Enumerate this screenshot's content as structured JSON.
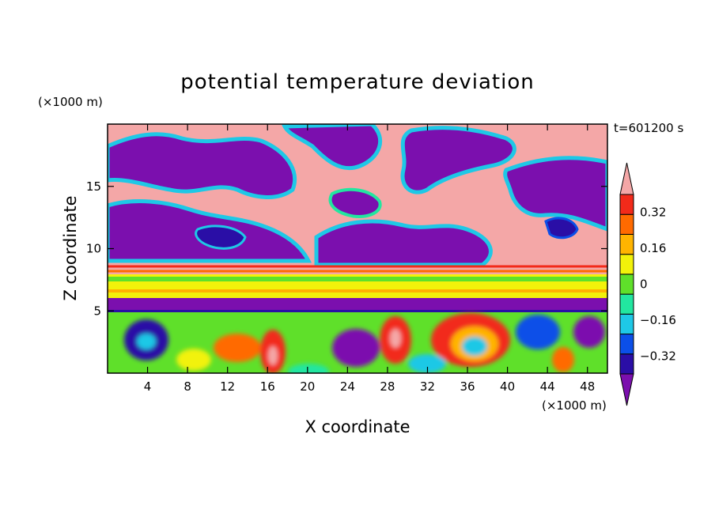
{
  "chart_data": {
    "type": "heatmap",
    "title": "potential temperature deviation",
    "xlabel": "X coordinate",
    "ylabel": "Z coordinate",
    "x_unit": "(×1000 m)",
    "y_unit": "(×1000 m)",
    "time_label": "t=601200 s",
    "xlim": [
      0,
      50
    ],
    "ylim": [
      0,
      20
    ],
    "x_ticks": [
      4,
      8,
      12,
      16,
      20,
      24,
      28,
      32,
      36,
      40,
      44,
      48
    ],
    "y_ticks": [
      5,
      10,
      15
    ],
    "grid": false,
    "legend": "right",
    "colorbar": {
      "levels": [
        -0.4,
        -0.32,
        -0.24,
        -0.16,
        -0.08,
        0,
        0.08,
        0.16,
        0.24,
        0.32,
        0.4
      ],
      "tick_labels": [
        "0.32",
        "0.16",
        "0",
        "−0.16",
        "−0.32"
      ],
      "tick_values": [
        0.32,
        0.16,
        0,
        -0.16,
        -0.32
      ],
      "colors": [
        "#7b0fae",
        "#2a0ea6",
        "#0b4fe8",
        "#1ec8e6",
        "#22e6a0",
        "#5fe02a",
        "#f2f20a",
        "#ffb400",
        "#ff6a00",
        "#f22a1a",
        "#f4a7a7"
      ],
      "extend": "both"
    },
    "bands": [
      {
        "z_from": 0,
        "z_to": 5,
        "description_value": "mixed -0.3..0.4"
      },
      {
        "z_from": 5,
        "z_to": 6,
        "value": -0.4
      },
      {
        "z_from": 6,
        "z_to": 8,
        "value": 0.16
      },
      {
        "z_from": 8,
        "z_to": 20,
        "value": "mixed"
      }
    ]
  }
}
